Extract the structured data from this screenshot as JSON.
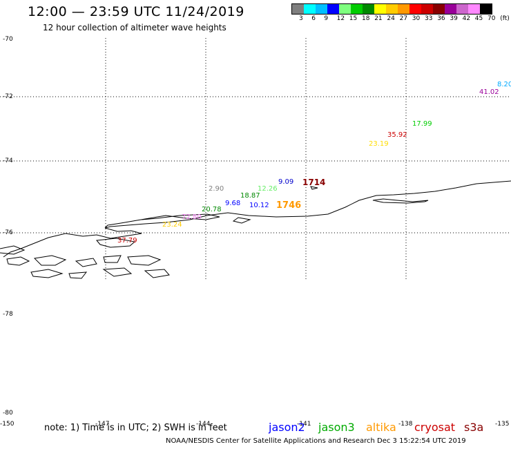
{
  "header": {
    "title": "12:00 — 23:59 UTC 11/24/2019",
    "subtitle": "12 hour collection of altimeter wave heights"
  },
  "legend": {
    "colors": [
      "#7f7f7f",
      "#00ffff",
      "#00bfff",
      "#0000ff",
      "#7fff7f",
      "#00cc00",
      "#008800",
      "#ffff00",
      "#ffcc00",
      "#ff9900",
      "#ff0000",
      "#cc0000",
      "#880000",
      "#990099",
      "#cc66cc",
      "#ff88ff",
      "#000000"
    ],
    "labels": [
      "3",
      "6",
      "9",
      "12",
      "15",
      "18",
      "21",
      "24",
      "27",
      "30",
      "33",
      "36",
      "39",
      "42",
      "45",
      "70",
      "(ft)"
    ]
  },
  "axes": {
    "lat_labels": [
      "-70",
      "-72",
      "-74",
      "-76",
      "-78",
      "-80"
    ],
    "lon_labels": [
      "-150",
      "-147",
      "-144",
      "-141",
      "-138",
      "-135"
    ]
  },
  "observations": [
    {
      "text": "8.20",
      "color": "#00aaff"
    },
    {
      "text": "41.02",
      "color": "#990099"
    },
    {
      "text": "17.99",
      "color": "#00cc00"
    },
    {
      "text": "35.92",
      "color": "#cc0000"
    },
    {
      "text": "23.19",
      "color": "#ffdd00"
    },
    {
      "text": "9.09",
      "color": "#0000cc"
    },
    {
      "text": "1714",
      "color": "#880000"
    },
    {
      "text": "2.90",
      "color": "#7f7f7f"
    },
    {
      "text": "12.26",
      "color": "#66ee66"
    },
    {
      "text": "18.87",
      "color": "#008800"
    },
    {
      "text": "9.68",
      "color": "#0000ff"
    },
    {
      "text": "10.12",
      "color": "#0000ff"
    },
    {
      "text": "1746",
      "color": "#ff9900"
    },
    {
      "text": "20.78",
      "color": "#008800"
    },
    {
      "text": "72.80",
      "color": "#ff88ff"
    },
    {
      "text": "23.24",
      "color": "#ffcc00"
    },
    {
      "text": "37.79",
      "color": "#cc0000"
    }
  ],
  "footer": {
    "note": "note: 1) Time is in UTC; 2) SWH is in feet",
    "satellites": [
      {
        "name": "jason2",
        "color": "#0000ff"
      },
      {
        "name": "jason3",
        "color": "#00aa00"
      },
      {
        "name": "altika",
        "color": "#ff9900"
      },
      {
        "name": "cryosat",
        "color": "#cc0000"
      },
      {
        "name": "s3a",
        "color": "#880000"
      }
    ],
    "credit": "NOAA/NESDIS Center for Satellite Applications and Research    Dec  3 15:22:54 UTC 2019"
  }
}
